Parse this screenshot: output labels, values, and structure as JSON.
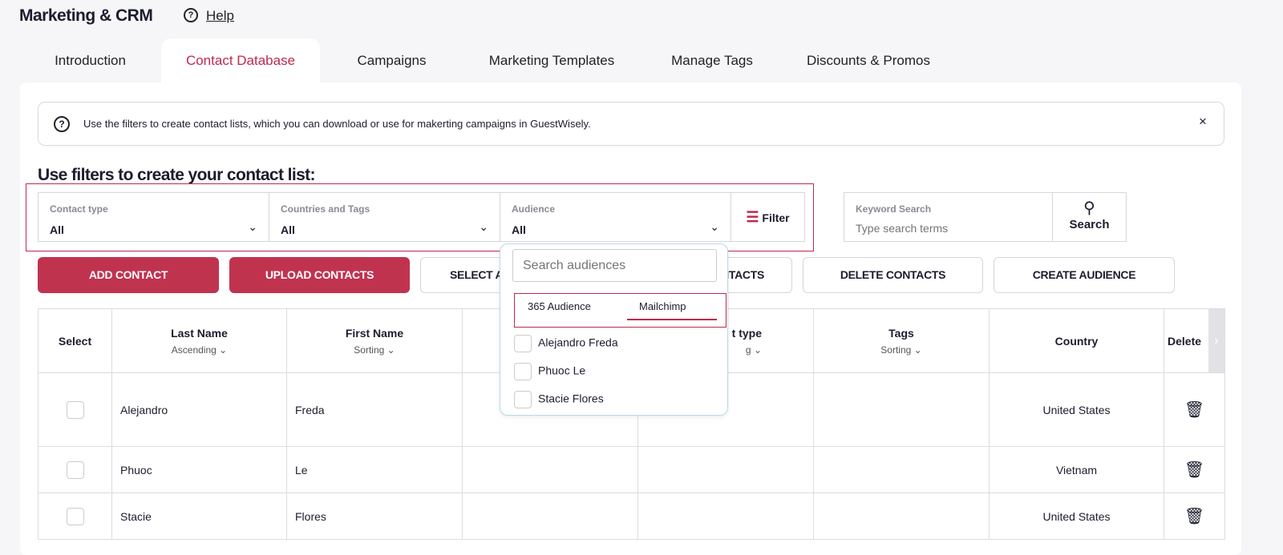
{
  "header": {
    "title": "Marketing & CRM",
    "help": "Help"
  },
  "tabs": [
    "Introduction",
    "Contact Database",
    "Campaigns",
    "Marketing Templates",
    "Manage Tags",
    "Discounts & Promos"
  ],
  "active_tab": "Contact Database",
  "info": {
    "text": "Use the filters to create contact lists, which you can download or use for makerting campaigns in GuestWisely.",
    "close": "×"
  },
  "heading": "Use filters to create your contact list:",
  "filters": [
    {
      "label": "Contact type",
      "value": "All"
    },
    {
      "label": "Countries and Tags",
      "value": "All"
    },
    {
      "label": "Audience",
      "value": "All"
    }
  ],
  "filter_button": "Filter",
  "keyword": {
    "label": "Keyword Search",
    "placeholder": "Type search terms",
    "button": "Search"
  },
  "buttons": [
    "ADD CONTACT",
    "UPLOAD CONTACTS",
    "SELECT A",
    "NTACTS",
    "DELETE CONTACTS",
    "CREATE AUDIENCE"
  ],
  "table": {
    "headers": [
      {
        "label": "Select"
      },
      {
        "label": "Last Name",
        "sort": "Ascending"
      },
      {
        "label": "First Name",
        "sort": "Sorting"
      },
      {
        "label": ""
      },
      {
        "label": "t type",
        "sort": "g"
      },
      {
        "label": "Tags",
        "sort": "Sorting"
      },
      {
        "label": "Country"
      },
      {
        "label": "Delete"
      }
    ],
    "rows": [
      {
        "last": "Alejandro",
        "first": "Freda",
        "country": "United States"
      },
      {
        "last": "Phuoc",
        "first": "Le",
        "country": "Vietnam"
      },
      {
        "last": "Stacie",
        "first": "Flores",
        "country": "United States"
      }
    ]
  },
  "audience_dropdown": {
    "placeholder": "Search audiences",
    "tabs": [
      "365 Audience",
      "Mailchimp"
    ],
    "active_tab": "Mailchimp",
    "items": [
      "Alejandro Freda",
      "Phuoc Le",
      "Stacie Flores"
    ]
  },
  "colors": {
    "accent": "#c0294f",
    "button": "#c0334f"
  }
}
